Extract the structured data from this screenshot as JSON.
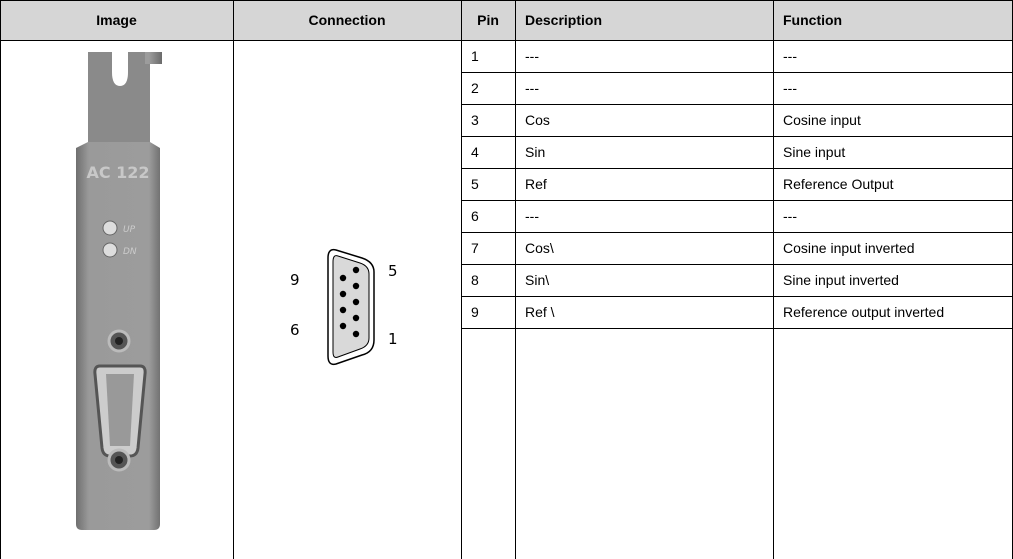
{
  "header": [
    "Image",
    "Connection",
    "Pin",
    "Description",
    "Function"
  ],
  "image": {
    "model": "AC 122",
    "led_up": "UP",
    "led_dn": "DN"
  },
  "connector": {
    "labels": [
      "9",
      "5",
      "6",
      "1"
    ]
  },
  "table": {
    "rows": [
      [
        "1",
        "---",
        "---"
      ],
      [
        "2",
        "---",
        "---"
      ],
      [
        "3",
        "Cos",
        "Cosine input"
      ],
      [
        "4",
        "Sin",
        "Sine input"
      ],
      [
        "5",
        "Ref",
        "Reference Output"
      ],
      [
        "6",
        "---",
        "---"
      ],
      [
        "7",
        "Cos\\",
        "Cosine input inverted"
      ],
      [
        "8",
        "Sin\\",
        "Sine input inverted"
      ],
      [
        "9",
        "Ref \\",
        "Reference output inverted"
      ]
    ]
  }
}
